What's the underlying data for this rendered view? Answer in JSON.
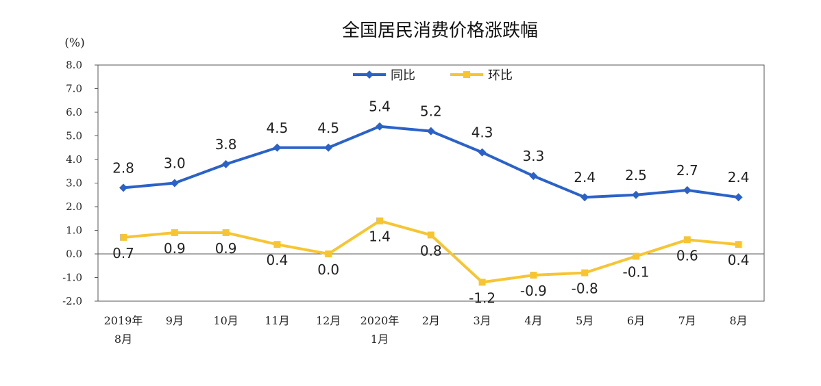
{
  "chart_data": {
    "type": "line",
    "title": "全国居民消费价格涨跌幅",
    "unit": "(%)",
    "categories": [
      [
        "2019年",
        "8月"
      ],
      [
        "9月"
      ],
      [
        "10月"
      ],
      [
        "11月"
      ],
      [
        "12月"
      ],
      [
        "2020年",
        "1月"
      ],
      [
        "2月"
      ],
      [
        "3月"
      ],
      [
        "4月"
      ],
      [
        "5月"
      ],
      [
        "6月"
      ],
      [
        "7月"
      ],
      [
        "8月"
      ]
    ],
    "ylim": [
      -2.0,
      8.0
    ],
    "yticks": [
      "8.0",
      "7.0",
      "6.0",
      "5.0",
      "4.0",
      "3.0",
      "2.0",
      "1.0",
      "0.0",
      "-1.0",
      "-2.0"
    ],
    "grid": false,
    "legend_position": "top-center",
    "series": [
      {
        "name": "同比",
        "color": "#2a62c9",
        "marker": "diamond",
        "values": [
          2.8,
          3.0,
          3.8,
          4.5,
          4.5,
          5.4,
          5.2,
          4.3,
          3.3,
          2.4,
          2.5,
          2.7,
          2.4
        ],
        "labels": [
          "2.8",
          "3.0",
          "3.8",
          "4.5",
          "4.5",
          "5.4",
          "5.2",
          "4.3",
          "3.3",
          "2.4",
          "2.5",
          "2.7",
          "2.4"
        ]
      },
      {
        "name": "环比",
        "color": "#f7c531",
        "marker": "square",
        "values": [
          0.7,
          0.9,
          0.9,
          0.4,
          0.0,
          1.4,
          0.8,
          -1.2,
          -0.9,
          -0.8,
          -0.1,
          0.6,
          0.4
        ],
        "labels": [
          "0.7",
          "0.9",
          "0.9",
          "0.4",
          "0.0",
          "1.4",
          "0.8",
          "-1.2",
          "-0.9",
          "-0.8",
          "-0.1",
          "0.6",
          "0.4"
        ]
      }
    ]
  }
}
